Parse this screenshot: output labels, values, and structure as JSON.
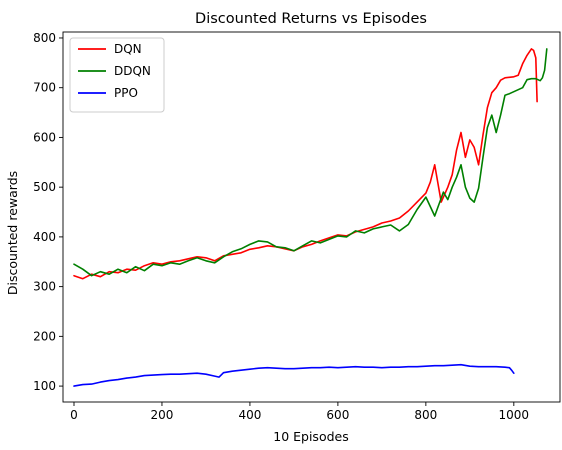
{
  "chart_data": {
    "type": "line",
    "title": "Discounted Returns vs Episodes",
    "xlabel": "10 Episodes",
    "ylabel": "Discounted rewards",
    "xlim": [
      -25,
      1105
    ],
    "ylim": [
      68,
      812
    ],
    "xticks": [
      0,
      200,
      400,
      600,
      800,
      1000
    ],
    "yticks": [
      100,
      200,
      300,
      400,
      500,
      600,
      700,
      800
    ],
    "grid": false,
    "legend_position": "top-left",
    "series": [
      {
        "name": "DQN",
        "color": "#ff0000",
        "x": [
          0,
          20,
          40,
          60,
          80,
          100,
          120,
          140,
          160,
          180,
          200,
          220,
          240,
          260,
          280,
          300,
          320,
          340,
          360,
          380,
          400,
          420,
          440,
          460,
          480,
          500,
          520,
          540,
          560,
          580,
          600,
          620,
          640,
          660,
          680,
          700,
          720,
          740,
          760,
          780,
          800,
          810,
          820,
          835,
          850,
          860,
          870,
          880,
          890,
          900,
          910,
          920,
          930,
          940,
          950,
          960,
          970,
          980,
          990,
          1000,
          1010,
          1020,
          1030,
          1040,
          1045,
          1050,
          1053
        ],
        "y": [
          322,
          316,
          325,
          320,
          330,
          328,
          335,
          333,
          342,
          348,
          345,
          350,
          352,
          356,
          360,
          358,
          352,
          362,
          365,
          368,
          375,
          378,
          382,
          380,
          376,
          372,
          380,
          385,
          392,
          398,
          404,
          402,
          410,
          415,
          420,
          428,
          432,
          438,
          452,
          470,
          488,
          510,
          545,
          470,
          500,
          525,
          575,
          610,
          560,
          595,
          580,
          545,
          605,
          660,
          690,
          700,
          715,
          720,
          721,
          722,
          725,
          748,
          765,
          778,
          775,
          760,
          672
        ]
      },
      {
        "name": "DDQN",
        "color": "#008000",
        "x": [
          0,
          20,
          40,
          60,
          80,
          100,
          120,
          140,
          160,
          180,
          200,
          220,
          240,
          260,
          280,
          300,
          320,
          340,
          360,
          380,
          400,
          420,
          440,
          460,
          480,
          500,
          520,
          540,
          560,
          580,
          600,
          620,
          640,
          660,
          680,
          700,
          720,
          740,
          760,
          780,
          800,
          820,
          840,
          850,
          860,
          870,
          880,
          890,
          900,
          910,
          920,
          930,
          940,
          950,
          960,
          970,
          980,
          990,
          1000,
          1010,
          1020,
          1030,
          1040,
          1050,
          1060,
          1065,
          1070,
          1075
        ],
        "y": [
          345,
          335,
          322,
          330,
          325,
          335,
          328,
          340,
          332,
          345,
          342,
          348,
          345,
          352,
          358,
          352,
          348,
          360,
          370,
          376,
          385,
          392,
          390,
          380,
          378,
          372,
          382,
          392,
          388,
          395,
          402,
          400,
          412,
          408,
          416,
          420,
          424,
          412,
          425,
          455,
          480,
          442,
          490,
          475,
          500,
          520,
          545,
          500,
          478,
          470,
          498,
          560,
          620,
          645,
          610,
          645,
          685,
          688,
          692,
          696,
          700,
          716,
          718,
          718,
          714,
          720,
          735,
          778
        ]
      },
      {
        "name": "PPO",
        "color": "#0000ff",
        "x": [
          0,
          20,
          40,
          60,
          80,
          100,
          120,
          140,
          160,
          180,
          200,
          220,
          240,
          260,
          280,
          300,
          320,
          330,
          340,
          360,
          380,
          400,
          420,
          440,
          460,
          480,
          500,
          520,
          540,
          560,
          580,
          600,
          620,
          640,
          660,
          680,
          700,
          720,
          740,
          760,
          780,
          800,
          820,
          840,
          860,
          880,
          900,
          920,
          940,
          960,
          980,
          990,
          995,
          1000
        ],
        "y": [
          100,
          103,
          104,
          108,
          111,
          113,
          116,
          118,
          121,
          122,
          123,
          124,
          124,
          125,
          126,
          124,
          120,
          118,
          127,
          130,
          132,
          134,
          136,
          137,
          136,
          135,
          135,
          136,
          137,
          137,
          138,
          137,
          138,
          139,
          138,
          138,
          137,
          138,
          138,
          139,
          139,
          140,
          141,
          141,
          142,
          143,
          140,
          139,
          139,
          139,
          138,
          137,
          132,
          126
        ]
      }
    ]
  }
}
